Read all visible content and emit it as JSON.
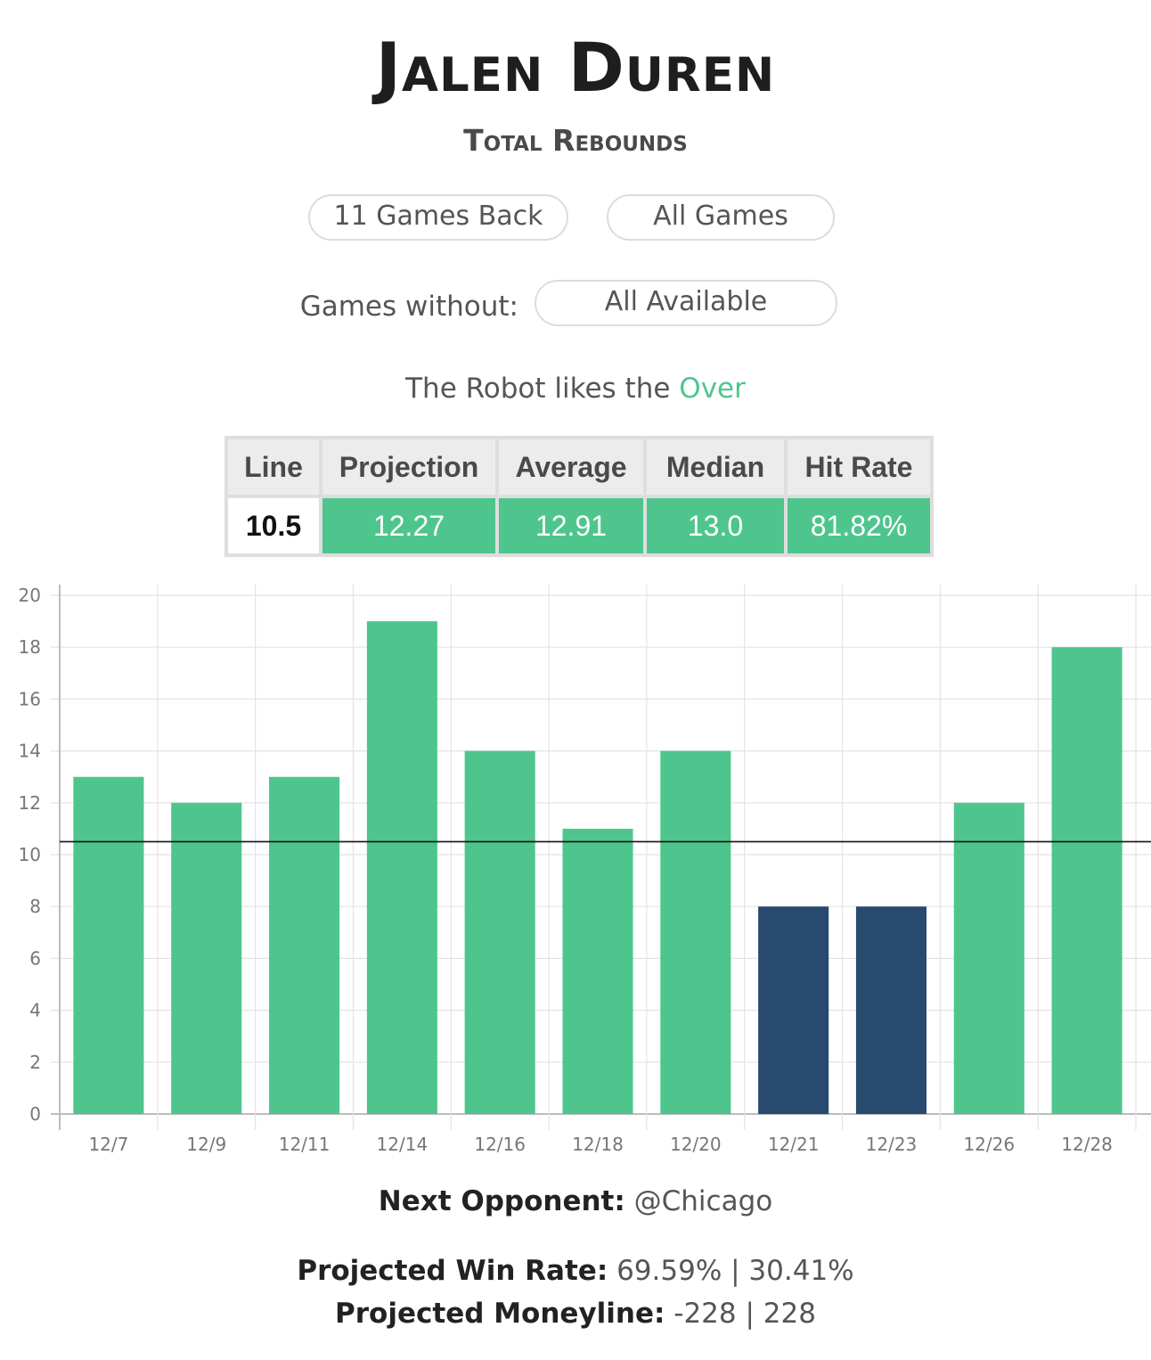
{
  "header": {
    "player_name": "Jalen Duren",
    "stat": "Total Rebounds"
  },
  "filters": {
    "games_back": "11 Games Back",
    "game_type": "All Games",
    "games_without_label": "Games without:",
    "games_without_value": "All Available"
  },
  "recommendation": {
    "prefix": "The Robot likes the",
    "pick": "Over",
    "pick_color": "#4fc58e"
  },
  "stats_table": {
    "headers": [
      "Line",
      "Projection",
      "Average",
      "Median",
      "Hit Rate"
    ],
    "values": [
      "10.5",
      "12.27",
      "12.91",
      "13.0",
      "81.82%"
    ]
  },
  "chart_data": {
    "type": "bar",
    "categories": [
      "12/7",
      "12/9",
      "12/11",
      "12/14",
      "12/16",
      "12/18",
      "12/20",
      "12/21",
      "12/23",
      "12/26",
      "12/28"
    ],
    "values": [
      13,
      12,
      13,
      19,
      14,
      11,
      14,
      8,
      8,
      12,
      18
    ],
    "ylim": [
      0,
      20
    ],
    "yticks": [
      0,
      2,
      4,
      6,
      8,
      10,
      12,
      14,
      16,
      18,
      20
    ],
    "reference_line": 10.5,
    "grid": true,
    "colors": {
      "over": "#4fc58e",
      "under": "#284a6e",
      "line": "#111111"
    }
  },
  "footer": {
    "next_opponent_label": "Next Opponent:",
    "next_opponent_value": "@Chicago",
    "win_rate_label": "Projected Win Rate:",
    "win_rate_value": "69.59% | 30.41%",
    "moneyline_label": "Projected Moneyline:",
    "moneyline_value": "-228 | 228"
  }
}
